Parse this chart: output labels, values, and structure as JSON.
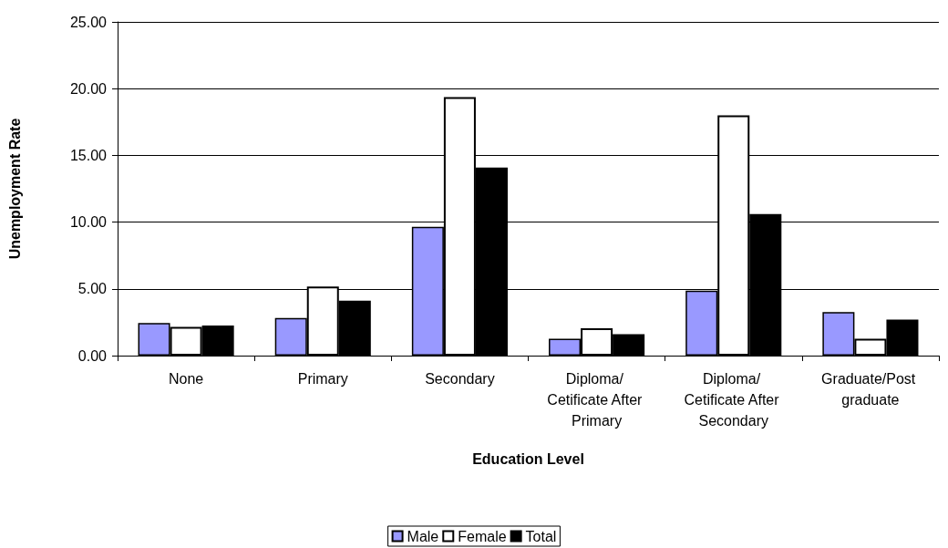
{
  "chart_data": {
    "type": "bar",
    "xlabel": "Education Level",
    "ylabel": "Unemployment Rate",
    "categories": [
      "None",
      "Primary",
      "Secondary",
      "Diploma/ Cetificate After Primary",
      "Diploma/ Cetificate After Secondary",
      "Graduate/Post graduate"
    ],
    "series": [
      {
        "name": "Male",
        "color": "#9999ff",
        "values": [
          2.45,
          2.82,
          9.64,
          1.27,
          4.86,
          3.27
        ]
      },
      {
        "name": "Female",
        "color": "#ffffff",
        "values": [
          2.16,
          5.18,
          19.36,
          2.05,
          18.0,
          1.27
        ]
      },
      {
        "name": "Total",
        "color": "#000000",
        "values": [
          2.25,
          4.11,
          14.09,
          1.61,
          10.61,
          2.7
        ]
      }
    ],
    "ylim": [
      0,
      25
    ],
    "yticks": [
      {
        "value": 0,
        "label": "0.00"
      },
      {
        "value": 5,
        "label": "5.00"
      },
      {
        "value": 10,
        "label": "10.00"
      },
      {
        "value": 15,
        "label": "15.00"
      },
      {
        "value": 20,
        "label": "20.00"
      },
      {
        "value": 25,
        "label": "25.00"
      }
    ],
    "grid": "y",
    "legend": "bottom"
  }
}
